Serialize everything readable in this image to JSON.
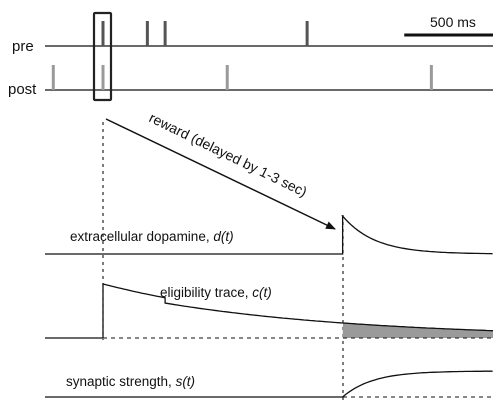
{
  "rows": {
    "pre": {
      "label": "pre",
      "spike_times_ms": [
        0,
        250,
        350,
        1150
      ]
    },
    "post": {
      "label": "post",
      "spike_times_ms": [
        -280,
        0,
        700,
        1850
      ]
    }
  },
  "scale_bar": {
    "label": "500 ms",
    "duration_ms": 500
  },
  "reward_arrow": {
    "label": "reward (delayed by 1-3 sec)",
    "delay_ms": 1350
  },
  "traces": {
    "dopamine": {
      "label": "extracellular dopamine, ",
      "symbol": "d(t)"
    },
    "eligibility": {
      "label": "eligibility trace, ",
      "symbol": "c(t)"
    },
    "synaptic": {
      "label": "synaptic strength, ",
      "symbol": "s(t)"
    }
  },
  "colors": {
    "pre_spike": "#555555",
    "post_spike": "#9a9a9a",
    "trace": "#111111",
    "shade": "#9a9a9a"
  }
}
